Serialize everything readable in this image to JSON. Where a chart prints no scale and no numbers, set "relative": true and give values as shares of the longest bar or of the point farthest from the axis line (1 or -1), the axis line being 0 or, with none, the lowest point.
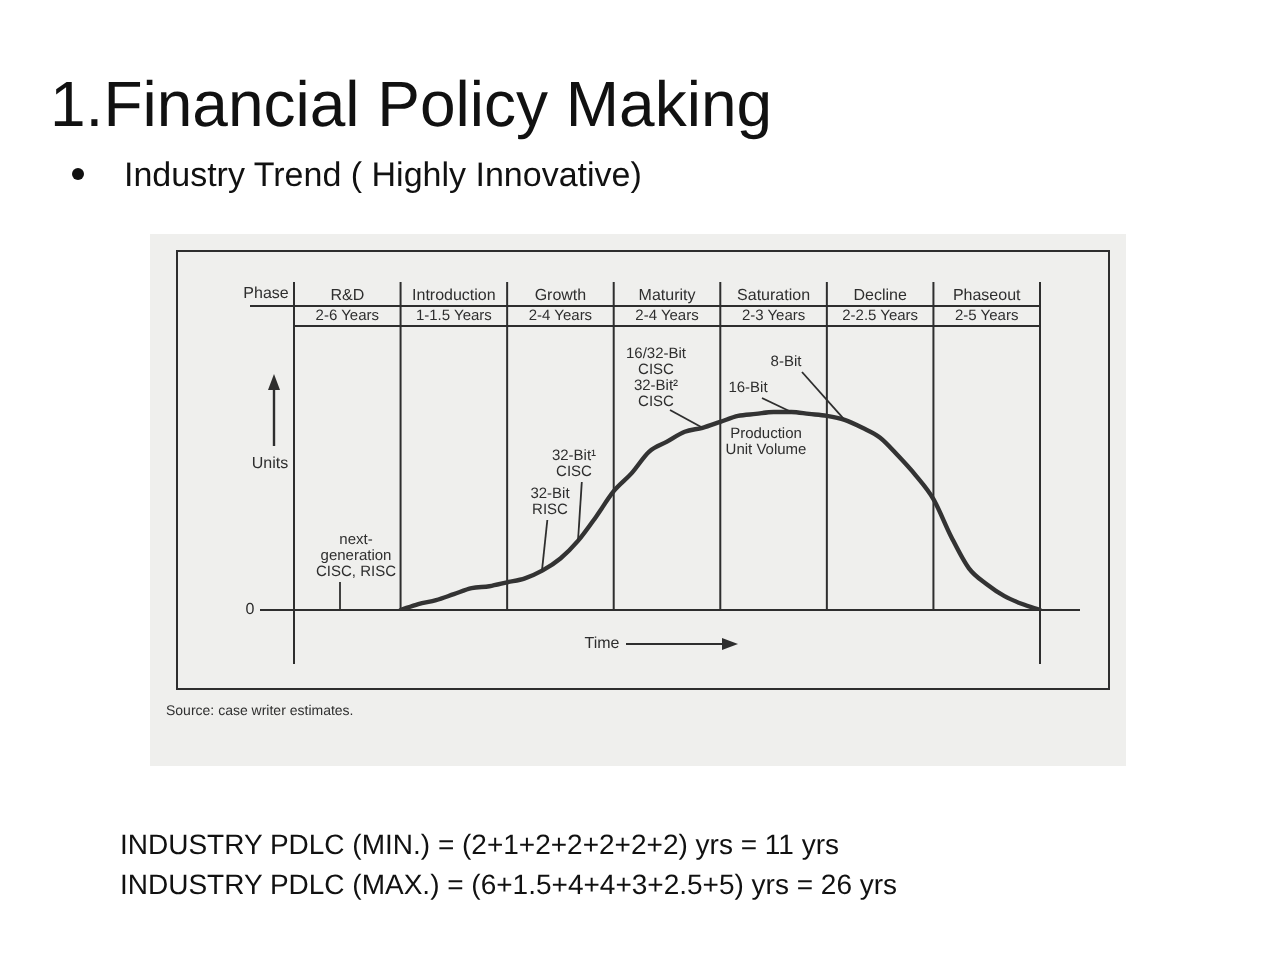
{
  "chart_data": {
    "type": "line",
    "title": "1.Financial Policy Making",
    "subtitle": "Industry Trend ( Highly Innovative)",
    "xlabel": "Time",
    "ylabel": "Units",
    "categories": [
      null,
      null,
      null,
      "R&D",
      null,
      null,
      null,
      null,
      null,
      "Introduction",
      null,
      null,
      null,
      null,
      null,
      "Growth",
      null,
      null,
      null,
      null,
      null,
      "Maturity",
      null,
      null,
      null,
      null,
      null,
      "Saturation",
      null,
      null,
      null,
      null,
      null,
      "Decline",
      null,
      null,
      null,
      null,
      null,
      "Phaseout",
      null,
      null,
      null
    ],
    "values": [
      null,
      null,
      null,
      null,
      null,
      null,
      0,
      0.03,
      0.05,
      0.08,
      0.11,
      0.12,
      0.14,
      0.16,
      0.2,
      0.26,
      0.35,
      0.47,
      0.6,
      0.69,
      0.8,
      0.85,
      0.9,
      0.92,
      0.95,
      0.98,
      0.99,
      1,
      1,
      0.99,
      0.98,
      0.96,
      0.92,
      0.87,
      0.78,
      0.68,
      0.56,
      0.37,
      0.21,
      0.13,
      0.07,
      0.03,
      0
    ],
    "color": "#333333",
    "relative": true,
    "grid": "x",
    "marker": "none",
    "annotations": [
      "Phase",
      "0",
      "2-6 Years",
      "1-1.5 Years",
      "2-4 Years",
      "2-4 Years",
      "2-3 Years",
      "2-2.5 Years",
      "2-5 Years",
      "next-generation CISC, RISC",
      "32-Bit RISC",
      "32-Bit¹ CISC",
      "16/32-Bit CISC",
      "32-Bit² CISC",
      "16-Bit",
      "8-Bit",
      "Production Unit Volume",
      "Source: case writer estimates.",
      "INDUSTRY PDLC (MIN.) = (2+1+2+2+2+2+2) yrs = 11 yrs",
      "INDUSTRY PDLC (MAX.) = (6+1.5+4+4+3+2.5+5) yrs = 26 yrs"
    ]
  }
}
